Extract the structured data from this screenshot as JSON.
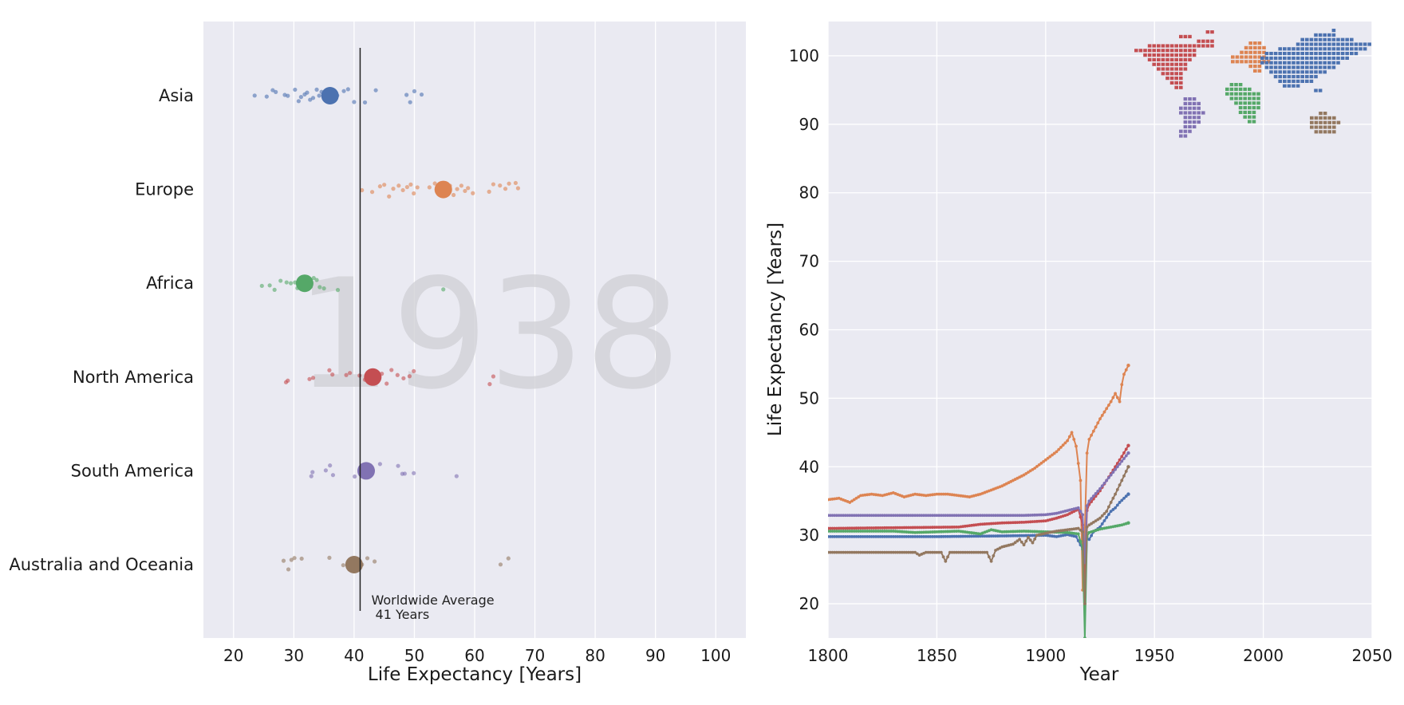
{
  "year_watermark": "1938",
  "colors": {
    "Asia": "#4c72b0",
    "Europe": "#dd8452",
    "Africa": "#55a868",
    "North America": "#c44e52",
    "South America": "#8172b3",
    "Australia and Oceania": "#937860",
    "plot_bg": "#eaeaf2",
    "grid": "#ffffff"
  },
  "chart_data": [
    {
      "type": "scatter",
      "subtype": "strip",
      "xlabel": "Life Expectancy [Years]",
      "xlim": [
        15,
        105
      ],
      "xticks": [
        20,
        30,
        40,
        50,
        60,
        70,
        80,
        90,
        100
      ],
      "categories": [
        "Asia",
        "Europe",
        "Africa",
        "North America",
        "South America",
        "Australia and Oceania"
      ],
      "means": {
        "Asia": 36,
        "Europe": 54.8,
        "Africa": 31.8,
        "North America": 43.1,
        "South America": 42,
        "Australia and Oceania": 40
      },
      "points": {
        "Asia": [
          23.5,
          25.5,
          26.5,
          27,
          28.5,
          29,
          30.2,
          30.8,
          31.2,
          31.8,
          32.2,
          32.7,
          33.2,
          33.8,
          34.2,
          34.6,
          35.2,
          35.6,
          36.5,
          37.2,
          38.3,
          39,
          40,
          41.8,
          43.6,
          48.7,
          49.3,
          50,
          51.2
        ],
        "Europe": [
          41.3,
          43,
          44.3,
          45,
          45.8,
          46.5,
          47.4,
          48.1,
          48.8,
          49.4,
          49.9,
          50.5,
          52.5,
          53.4,
          54.5,
          55.9,
          56.5,
          57.1,
          57.8,
          58.4,
          58.9,
          59.7,
          62.4,
          63.1,
          64.2,
          65.1,
          65.7,
          66.8,
          67.2
        ],
        "Africa": [
          24.7,
          26,
          26.8,
          27.8,
          28.8,
          29.5,
          30.2,
          30.6,
          31,
          31.5,
          31.9,
          32.3,
          32.8,
          33.3,
          33.8,
          34.3,
          35,
          37.3,
          54.8
        ],
        "North America": [
          28.7,
          29,
          32.6,
          33.2,
          35.9,
          36.4,
          38.7,
          39.3,
          40.9,
          41.8,
          43.3,
          44.6,
          45.4,
          46.2,
          47.2,
          48.2,
          49.2,
          49.9,
          62.5,
          63.1
        ],
        "South America": [
          32.9,
          33.1,
          35.3,
          36,
          36.5,
          40.1,
          42.9,
          44.3,
          47.3,
          48,
          48.4,
          49.9,
          57
        ],
        "Australia and Oceania": [
          28.3,
          29.1,
          29.6,
          30.1,
          31.3,
          35.9,
          38.2,
          39.2,
          39.8,
          40.6,
          41.3,
          42.2,
          43.4,
          64.3,
          65.6
        ]
      },
      "reference_line": {
        "value": 41,
        "label_line1": "Worldwide Average",
        "label_line2": " 41 Years"
      }
    },
    {
      "type": "line",
      "xlabel": "Year",
      "ylabel": "Life Expectancy [Years]",
      "xlim": [
        1800,
        2050
      ],
      "ylim": [
        15,
        105
      ],
      "xticks": [
        1800,
        1850,
        1900,
        1950,
        2000,
        2050
      ],
      "yticks": [
        20,
        30,
        40,
        50,
        60,
        70,
        80,
        90,
        100
      ],
      "series": [
        {
          "name": "Europe",
          "points": [
            [
              1800,
              35.2
            ],
            [
              1805,
              35.4
            ],
            [
              1810,
              34.8
            ],
            [
              1815,
              35.8
            ],
            [
              1820,
              36
            ],
            [
              1825,
              35.8
            ],
            [
              1830,
              36.2
            ],
            [
              1835,
              35.6
            ],
            [
              1840,
              36
            ],
            [
              1845,
              35.8
            ],
            [
              1850,
              36
            ],
            [
              1855,
              36
            ],
            [
              1860,
              35.8
            ],
            [
              1865,
              35.6
            ],
            [
              1870,
              36
            ],
            [
              1875,
              36.6
            ],
            [
              1880,
              37.2
            ],
            [
              1885,
              38
            ],
            [
              1890,
              38.8
            ],
            [
              1895,
              39.8
            ],
            [
              1900,
              41
            ],
            [
              1905,
              42.2
            ],
            [
              1910,
              43.8
            ],
            [
              1912,
              45
            ],
            [
              1914,
              43
            ],
            [
              1916,
              38
            ],
            [
              1917,
              22
            ],
            [
              1918,
              31
            ],
            [
              1919,
              42
            ],
            [
              1920,
              44
            ],
            [
              1925,
              47
            ],
            [
              1930,
              49.5
            ],
            [
              1932,
              50.7
            ],
            [
              1934,
              49.5
            ],
            [
              1935,
              52
            ],
            [
              1936,
              53.5
            ],
            [
              1938,
              54.8
            ]
          ]
        },
        {
          "name": "Asia",
          "points": [
            [
              1800,
              29.8
            ],
            [
              1850,
              29.8
            ],
            [
              1880,
              29.9
            ],
            [
              1900,
              30
            ],
            [
              1905,
              29.8
            ],
            [
              1910,
              30.1
            ],
            [
              1914,
              29.8
            ],
            [
              1917,
              28
            ],
            [
              1918,
              20
            ],
            [
              1919,
              29.5
            ],
            [
              1920,
              29.4
            ],
            [
              1922,
              30.5
            ],
            [
              1925,
              31.2
            ],
            [
              1928,
              32.6
            ],
            [
              1930,
              33.5
            ],
            [
              1932,
              34
            ],
            [
              1934,
              34.8
            ],
            [
              1936,
              35.4
            ],
            [
              1938,
              36
            ]
          ]
        },
        {
          "name": "Africa",
          "points": [
            [
              1800,
              30.6
            ],
            [
              1830,
              30.6
            ],
            [
              1840,
              30.4
            ],
            [
              1860,
              30.6
            ],
            [
              1870,
              30.2
            ],
            [
              1875,
              30.8
            ],
            [
              1880,
              30.5
            ],
            [
              1890,
              30.6
            ],
            [
              1900,
              30.5
            ],
            [
              1910,
              30.4
            ],
            [
              1915,
              30.2
            ],
            [
              1917,
              28
            ],
            [
              1918,
              15
            ],
            [
              1919,
              29.8
            ],
            [
              1920,
              30.4
            ],
            [
              1925,
              30.9
            ],
            [
              1930,
              31.2
            ],
            [
              1935,
              31.5
            ],
            [
              1938,
              31.8
            ]
          ]
        },
        {
          "name": "North America",
          "points": [
            [
              1800,
              31
            ],
            [
              1860,
              31.2
            ],
            [
              1870,
              31.6
            ],
            [
              1880,
              31.8
            ],
            [
              1890,
              31.9
            ],
            [
              1900,
              32.1
            ],
            [
              1905,
              32.5
            ],
            [
              1910,
              33
            ],
            [
              1915,
              33.8
            ],
            [
              1917,
              31.5
            ],
            [
              1918,
              24
            ],
            [
              1919,
              33.6
            ],
            [
              1920,
              34.5
            ],
            [
              1925,
              36.5
            ],
            [
              1930,
              39
            ],
            [
              1935,
              41.5
            ],
            [
              1938,
              43.1
            ]
          ]
        },
        {
          "name": "South America",
          "points": [
            [
              1800,
              32.9
            ],
            [
              1890,
              32.9
            ],
            [
              1900,
              33
            ],
            [
              1905,
              33.2
            ],
            [
              1910,
              33.6
            ],
            [
              1915,
              34
            ],
            [
              1917,
              33
            ],
            [
              1918,
              26
            ],
            [
              1919,
              34.3
            ],
            [
              1920,
              35
            ],
            [
              1925,
              36.8
            ],
            [
              1930,
              38.8
            ],
            [
              1935,
              40.8
            ],
            [
              1938,
              42
            ]
          ]
        },
        {
          "name": "Australia and Oceania",
          "points": [
            [
              1800,
              27.5
            ],
            [
              1840,
              27.5
            ],
            [
              1842,
              27.1
            ],
            [
              1845,
              27.5
            ],
            [
              1852,
              27.5
            ],
            [
              1854,
              26.2
            ],
            [
              1856,
              27.5
            ],
            [
              1873,
              27.5
            ],
            [
              1875,
              26.2
            ],
            [
              1877,
              27.8
            ],
            [
              1880,
              28.3
            ],
            [
              1885,
              28.7
            ],
            [
              1888,
              29.4
            ],
            [
              1890,
              28.6
            ],
            [
              1892,
              29.7
            ],
            [
              1894,
              28.9
            ],
            [
              1896,
              30
            ],
            [
              1900,
              30.3
            ],
            [
              1905,
              30.6
            ],
            [
              1910,
              30.8
            ],
            [
              1915,
              31
            ],
            [
              1917,
              30.5
            ],
            [
              1918,
              20
            ],
            [
              1919,
              31.2
            ],
            [
              1920,
              31.5
            ],
            [
              1925,
              32.5
            ],
            [
              1928,
              33.5
            ],
            [
              1930,
              34.8
            ],
            [
              1932,
              36
            ],
            [
              1935,
              38
            ],
            [
              1938,
              40
            ]
          ]
        }
      ],
      "inset": {
        "type": "continent-map",
        "description_free": true
      }
    }
  ]
}
